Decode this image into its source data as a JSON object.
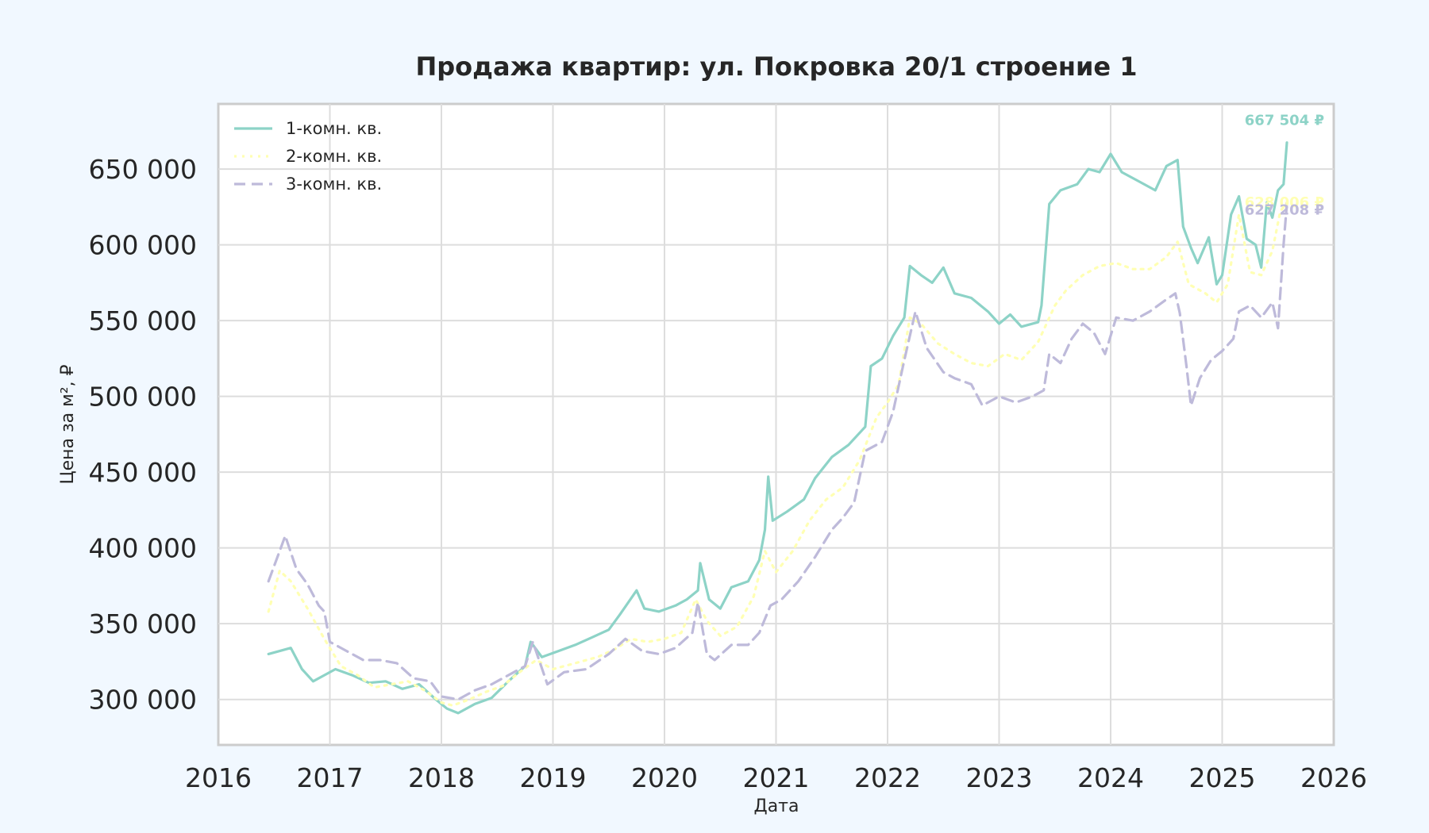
{
  "chart_data": {
    "type": "line",
    "title": "Продажа квартир: ул. Покровка 20/1 строение 1",
    "xlabel": "Дата",
    "ylabel": "Цена за м², ₽",
    "xlim": [
      2016,
      2026
    ],
    "ylim": [
      270000,
      693000
    ],
    "x_ticks": [
      "2016",
      "2017",
      "2018",
      "2019",
      "2020",
      "2021",
      "2022",
      "2023",
      "2024",
      "2025",
      "2026"
    ],
    "y_ticks": [
      "300 000",
      "350 000",
      "400 000",
      "450 000",
      "500 000",
      "550 000",
      "600 000",
      "650 000"
    ],
    "y_tick_values": [
      300000,
      350000,
      400000,
      450000,
      500000,
      550000,
      600000,
      650000
    ],
    "grid": true,
    "legend_position": "top-left",
    "series": [
      {
        "name": "1-комн. кв.",
        "color": "#8dd3c7",
        "style": "solid",
        "end_label": "667 504 ₽",
        "points": [
          [
            2016.45,
            330000
          ],
          [
            2016.55,
            332000
          ],
          [
            2016.65,
            334000
          ],
          [
            2016.75,
            320000
          ],
          [
            2016.85,
            312000
          ],
          [
            2016.95,
            316000
          ],
          [
            2017.05,
            320000
          ],
          [
            2017.2,
            316000
          ],
          [
            2017.35,
            311000
          ],
          [
            2017.5,
            312000
          ],
          [
            2017.65,
            307000
          ],
          [
            2017.8,
            310000
          ],
          [
            2017.95,
            300000
          ],
          [
            2018.05,
            294000
          ],
          [
            2018.15,
            291000
          ],
          [
            2018.3,
            297000
          ],
          [
            2018.45,
            301000
          ],
          [
            2018.6,
            312000
          ],
          [
            2018.75,
            322000
          ],
          [
            2018.8,
            338000
          ],
          [
            2018.9,
            328000
          ],
          [
            2019.05,
            332000
          ],
          [
            2019.2,
            336000
          ],
          [
            2019.35,
            341000
          ],
          [
            2019.5,
            346000
          ],
          [
            2019.6,
            356000
          ],
          [
            2019.75,
            372000
          ],
          [
            2019.82,
            360000
          ],
          [
            2019.95,
            358000
          ],
          [
            2020.1,
            362000
          ],
          [
            2020.2,
            366000
          ],
          [
            2020.3,
            372000
          ],
          [
            2020.32,
            390000
          ],
          [
            2020.4,
            366000
          ],
          [
            2020.5,
            360000
          ],
          [
            2020.6,
            374000
          ],
          [
            2020.75,
            378000
          ],
          [
            2020.85,
            392000
          ],
          [
            2020.9,
            412000
          ],
          [
            2020.93,
            447000
          ],
          [
            2020.97,
            418000
          ],
          [
            2021.1,
            424000
          ],
          [
            2021.25,
            432000
          ],
          [
            2021.35,
            446000
          ],
          [
            2021.5,
            460000
          ],
          [
            2021.65,
            468000
          ],
          [
            2021.8,
            480000
          ],
          [
            2021.85,
            520000
          ],
          [
            2021.95,
            525000
          ],
          [
            2022.05,
            540000
          ],
          [
            2022.15,
            552000
          ],
          [
            2022.2,
            586000
          ],
          [
            2022.3,
            580000
          ],
          [
            2022.4,
            575000
          ],
          [
            2022.5,
            585000
          ],
          [
            2022.6,
            568000
          ],
          [
            2022.75,
            565000
          ],
          [
            2022.9,
            556000
          ],
          [
            2023.0,
            548000
          ],
          [
            2023.1,
            554000
          ],
          [
            2023.2,
            546000
          ],
          [
            2023.35,
            549000
          ],
          [
            2023.38,
            560000
          ],
          [
            2023.45,
            627000
          ],
          [
            2023.55,
            636000
          ],
          [
            2023.7,
            640000
          ],
          [
            2023.8,
            650000
          ],
          [
            2023.9,
            648000
          ],
          [
            2024.0,
            660000
          ],
          [
            2024.1,
            648000
          ],
          [
            2024.25,
            642000
          ],
          [
            2024.4,
            636000
          ],
          [
            2024.5,
            652000
          ],
          [
            2024.6,
            656000
          ],
          [
            2024.65,
            612000
          ],
          [
            2024.72,
            598000
          ],
          [
            2024.78,
            588000
          ],
          [
            2024.88,
            605000
          ],
          [
            2024.95,
            574000
          ],
          [
            2025.0,
            580000
          ],
          [
            2025.08,
            620000
          ],
          [
            2025.15,
            632000
          ],
          [
            2025.22,
            604000
          ],
          [
            2025.3,
            600000
          ],
          [
            2025.35,
            585000
          ],
          [
            2025.4,
            628000
          ],
          [
            2025.45,
            618000
          ],
          [
            2025.5,
            636000
          ],
          [
            2025.55,
            640000
          ],
          [
            2025.58,
            667504
          ]
        ]
      },
      {
        "name": "2-комн. кв.",
        "color": "#ffffb3",
        "style": "dotted",
        "end_label": "628 006 ₽",
        "points": [
          [
            2016.45,
            358000
          ],
          [
            2016.55,
            385000
          ],
          [
            2016.65,
            378000
          ],
          [
            2016.8,
            360000
          ],
          [
            2016.95,
            340000
          ],
          [
            2017.1,
            322000
          ],
          [
            2017.25,
            316000
          ],
          [
            2017.4,
            308000
          ],
          [
            2017.55,
            310000
          ],
          [
            2017.7,
            312000
          ],
          [
            2017.85,
            306000
          ],
          [
            2018.0,
            298000
          ],
          [
            2018.1,
            296000
          ],
          [
            2018.25,
            300000
          ],
          [
            2018.4,
            305000
          ],
          [
            2018.55,
            309000
          ],
          [
            2018.7,
            318000
          ],
          [
            2018.85,
            326000
          ],
          [
            2019.0,
            320000
          ],
          [
            2019.2,
            324000
          ],
          [
            2019.4,
            328000
          ],
          [
            2019.55,
            333000
          ],
          [
            2019.7,
            340000
          ],
          [
            2019.85,
            338000
          ],
          [
            2020.0,
            340000
          ],
          [
            2020.15,
            344000
          ],
          [
            2020.28,
            366000
          ],
          [
            2020.38,
            352000
          ],
          [
            2020.5,
            342000
          ],
          [
            2020.65,
            348000
          ],
          [
            2020.8,
            368000
          ],
          [
            2020.9,
            398000
          ],
          [
            2021.0,
            384000
          ],
          [
            2021.15,
            398000
          ],
          [
            2021.3,
            418000
          ],
          [
            2021.45,
            432000
          ],
          [
            2021.6,
            440000
          ],
          [
            2021.75,
            458000
          ],
          [
            2021.9,
            486000
          ],
          [
            2022.0,
            496000
          ],
          [
            2022.1,
            508000
          ],
          [
            2022.2,
            552000
          ],
          [
            2022.3,
            548000
          ],
          [
            2022.45,
            535000
          ],
          [
            2022.6,
            528000
          ],
          [
            2022.75,
            522000
          ],
          [
            2022.9,
            520000
          ],
          [
            2023.05,
            528000
          ],
          [
            2023.2,
            524000
          ],
          [
            2023.35,
            536000
          ],
          [
            2023.5,
            560000
          ],
          [
            2023.6,
            570000
          ],
          [
            2023.75,
            580000
          ],
          [
            2023.9,
            586000
          ],
          [
            2024.05,
            588000
          ],
          [
            2024.2,
            584000
          ],
          [
            2024.35,
            584000
          ],
          [
            2024.5,
            592000
          ],
          [
            2024.6,
            602000
          ],
          [
            2024.7,
            574000
          ],
          [
            2024.85,
            568000
          ],
          [
            2024.95,
            562000
          ],
          [
            2025.05,
            574000
          ],
          [
            2025.15,
            620000
          ],
          [
            2025.25,
            582000
          ],
          [
            2025.35,
            580000
          ],
          [
            2025.45,
            596000
          ],
          [
            2025.52,
            622000
          ],
          [
            2025.58,
            628006
          ]
        ]
      },
      {
        "name": "3-комн. кв.",
        "color": "#bebada",
        "style": "dashed",
        "end_label": "627 208 ₽",
        "points": [
          [
            2016.45,
            378000
          ],
          [
            2016.55,
            398000
          ],
          [
            2016.6,
            408000
          ],
          [
            2016.7,
            386000
          ],
          [
            2016.8,
            376000
          ],
          [
            2016.9,
            362000
          ],
          [
            2016.95,
            358000
          ],
          [
            2017.0,
            338000
          ],
          [
            2017.15,
            332000
          ],
          [
            2017.3,
            326000
          ],
          [
            2017.45,
            326000
          ],
          [
            2017.6,
            324000
          ],
          [
            2017.75,
            314000
          ],
          [
            2017.9,
            312000
          ],
          [
            2018.0,
            302000
          ],
          [
            2018.15,
            300000
          ],
          [
            2018.3,
            306000
          ],
          [
            2018.45,
            310000
          ],
          [
            2018.6,
            316000
          ],
          [
            2018.75,
            322000
          ],
          [
            2018.82,
            338000
          ],
          [
            2018.95,
            310000
          ],
          [
            2019.1,
            318000
          ],
          [
            2019.3,
            320000
          ],
          [
            2019.5,
            330000
          ],
          [
            2019.65,
            340000
          ],
          [
            2019.8,
            332000
          ],
          [
            2019.95,
            330000
          ],
          [
            2020.1,
            334000
          ],
          [
            2020.25,
            344000
          ],
          [
            2020.3,
            364000
          ],
          [
            2020.38,
            330000
          ],
          [
            2020.45,
            326000
          ],
          [
            2020.6,
            336000
          ],
          [
            2020.75,
            336000
          ],
          [
            2020.85,
            344000
          ],
          [
            2020.95,
            362000
          ],
          [
            2021.05,
            366000
          ],
          [
            2021.2,
            378000
          ],
          [
            2021.35,
            394000
          ],
          [
            2021.5,
            412000
          ],
          [
            2021.6,
            420000
          ],
          [
            2021.7,
            430000
          ],
          [
            2021.8,
            464000
          ],
          [
            2021.95,
            470000
          ],
          [
            2022.05,
            490000
          ],
          [
            2022.15,
            524000
          ],
          [
            2022.25,
            556000
          ],
          [
            2022.35,
            532000
          ],
          [
            2022.5,
            516000
          ],
          [
            2022.6,
            512000
          ],
          [
            2022.75,
            508000
          ],
          [
            2022.85,
            494000
          ],
          [
            2023.0,
            500000
          ],
          [
            2023.15,
            496000
          ],
          [
            2023.3,
            500000
          ],
          [
            2023.4,
            504000
          ],
          [
            2023.45,
            528000
          ],
          [
            2023.55,
            522000
          ],
          [
            2023.65,
            538000
          ],
          [
            2023.75,
            548000
          ],
          [
            2023.85,
            542000
          ],
          [
            2023.95,
            528000
          ],
          [
            2024.05,
            552000
          ],
          [
            2024.2,
            550000
          ],
          [
            2024.35,
            556000
          ],
          [
            2024.5,
            564000
          ],
          [
            2024.58,
            568000
          ],
          [
            2024.62,
            555000
          ],
          [
            2024.68,
            520000
          ],
          [
            2024.72,
            494000
          ],
          [
            2024.8,
            512000
          ],
          [
            2024.9,
            524000
          ],
          [
            2025.0,
            530000
          ],
          [
            2025.1,
            538000
          ],
          [
            2025.15,
            556000
          ],
          [
            2025.25,
            560000
          ],
          [
            2025.35,
            552000
          ],
          [
            2025.45,
            562000
          ],
          [
            2025.5,
            545000
          ],
          [
            2025.55,
            600000
          ],
          [
            2025.58,
            627208
          ]
        ]
      }
    ]
  }
}
